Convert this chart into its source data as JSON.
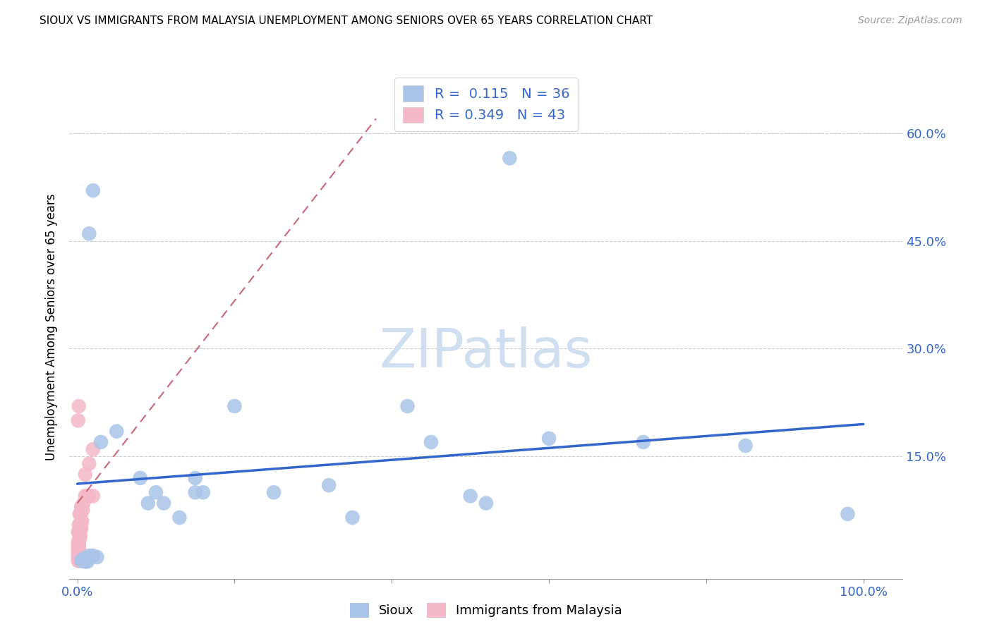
{
  "title": "SIOUX VS IMMIGRANTS FROM MALAYSIA UNEMPLOYMENT AMONG SENIORS OVER 65 YEARS CORRELATION CHART",
  "source": "Source: ZipAtlas.com",
  "ylabel": "Unemployment Among Seniors over 65 years",
  "xlim": [
    -0.01,
    1.05
  ],
  "ylim": [
    -0.02,
    0.68
  ],
  "sioux_color": "#aac4e8",
  "malaysia_color": "#f4b8c8",
  "sioux_line_color": "#3366cc",
  "malaysia_line_color": "#cc6677",
  "watermark_color": "#d0dff0",
  "legend_R_sioux": "0.115",
  "legend_N_sioux": "36",
  "legend_R_malaysia": "0.349",
  "legend_N_malaysia": "43",
  "sioux_pts": [
    [
      0.005,
      0.005
    ],
    [
      0.007,
      0.005
    ],
    [
      0.009,
      0.004
    ],
    [
      0.011,
      0.004
    ],
    [
      0.013,
      0.004
    ],
    [
      0.008,
      0.008
    ],
    [
      0.01,
      0.008
    ],
    [
      0.012,
      0.008
    ],
    [
      0.015,
      0.012
    ],
    [
      0.02,
      0.012
    ],
    [
      0.025,
      0.01
    ],
    [
      0.015,
      0.46
    ],
    [
      0.02,
      0.52
    ],
    [
      0.03,
      0.17
    ],
    [
      0.05,
      0.185
    ],
    [
      0.08,
      0.12
    ],
    [
      0.09,
      0.085
    ],
    [
      0.1,
      0.1
    ],
    [
      0.11,
      0.085
    ],
    [
      0.13,
      0.065
    ],
    [
      0.15,
      0.12
    ],
    [
      0.2,
      0.22
    ],
    [
      0.25,
      0.1
    ],
    [
      0.32,
      0.11
    ],
    [
      0.35,
      0.065
    ],
    [
      0.42,
      0.22
    ],
    [
      0.45,
      0.17
    ],
    [
      0.5,
      0.095
    ],
    [
      0.52,
      0.085
    ],
    [
      0.55,
      0.565
    ],
    [
      0.6,
      0.175
    ],
    [
      0.72,
      0.17
    ],
    [
      0.85,
      0.165
    ],
    [
      0.98,
      0.07
    ],
    [
      0.15,
      0.1
    ],
    [
      0.16,
      0.1
    ]
  ],
  "malaysia_pts": [
    [
      0.001,
      0.005
    ],
    [
      0.002,
      0.005
    ],
    [
      0.003,
      0.005
    ],
    [
      0.004,
      0.005
    ],
    [
      0.001,
      0.01
    ],
    [
      0.002,
      0.01
    ],
    [
      0.003,
      0.01
    ],
    [
      0.001,
      0.015
    ],
    [
      0.002,
      0.015
    ],
    [
      0.003,
      0.015
    ],
    [
      0.001,
      0.02
    ],
    [
      0.002,
      0.02
    ],
    [
      0.001,
      0.025
    ],
    [
      0.002,
      0.025
    ],
    [
      0.001,
      0.03
    ],
    [
      0.002,
      0.03
    ],
    [
      0.002,
      0.035
    ],
    [
      0.003,
      0.035
    ],
    [
      0.003,
      0.04
    ],
    [
      0.004,
      0.04
    ],
    [
      0.004,
      0.05
    ],
    [
      0.005,
      0.05
    ],
    [
      0.005,
      0.06
    ],
    [
      0.006,
      0.06
    ],
    [
      0.007,
      0.075
    ],
    [
      0.008,
      0.085
    ],
    [
      0.01,
      0.095
    ],
    [
      0.012,
      0.095
    ],
    [
      0.015,
      0.095
    ],
    [
      0.02,
      0.095
    ],
    [
      0.005,
      0.08
    ],
    [
      0.006,
      0.08
    ],
    [
      0.003,
      0.07
    ],
    [
      0.004,
      0.07
    ],
    [
      0.002,
      0.055
    ],
    [
      0.003,
      0.055
    ],
    [
      0.001,
      0.045
    ],
    [
      0.002,
      0.045
    ],
    [
      0.001,
      0.2
    ],
    [
      0.002,
      0.22
    ],
    [
      0.01,
      0.125
    ],
    [
      0.015,
      0.14
    ],
    [
      0.02,
      0.16
    ]
  ],
  "sioux_line_x": [
    0.0,
    1.0
  ],
  "sioux_line_y": [
    0.112,
    0.195
  ],
  "malaysia_line_x": [
    0.0,
    0.38
  ],
  "malaysia_line_y": [
    0.085,
    0.62
  ],
  "ytick_vals": [
    0.0,
    0.15,
    0.3,
    0.45,
    0.6
  ],
  "ytick_labels": [
    "",
    "15.0%",
    "30.0%",
    "45.0%",
    "60.0%"
  ],
  "xtick_vals": [
    0.0,
    0.2,
    0.4,
    0.6,
    0.8,
    1.0
  ],
  "xtick_labels": [
    "0.0%",
    "",
    "",
    "",
    "",
    "100.0%"
  ]
}
